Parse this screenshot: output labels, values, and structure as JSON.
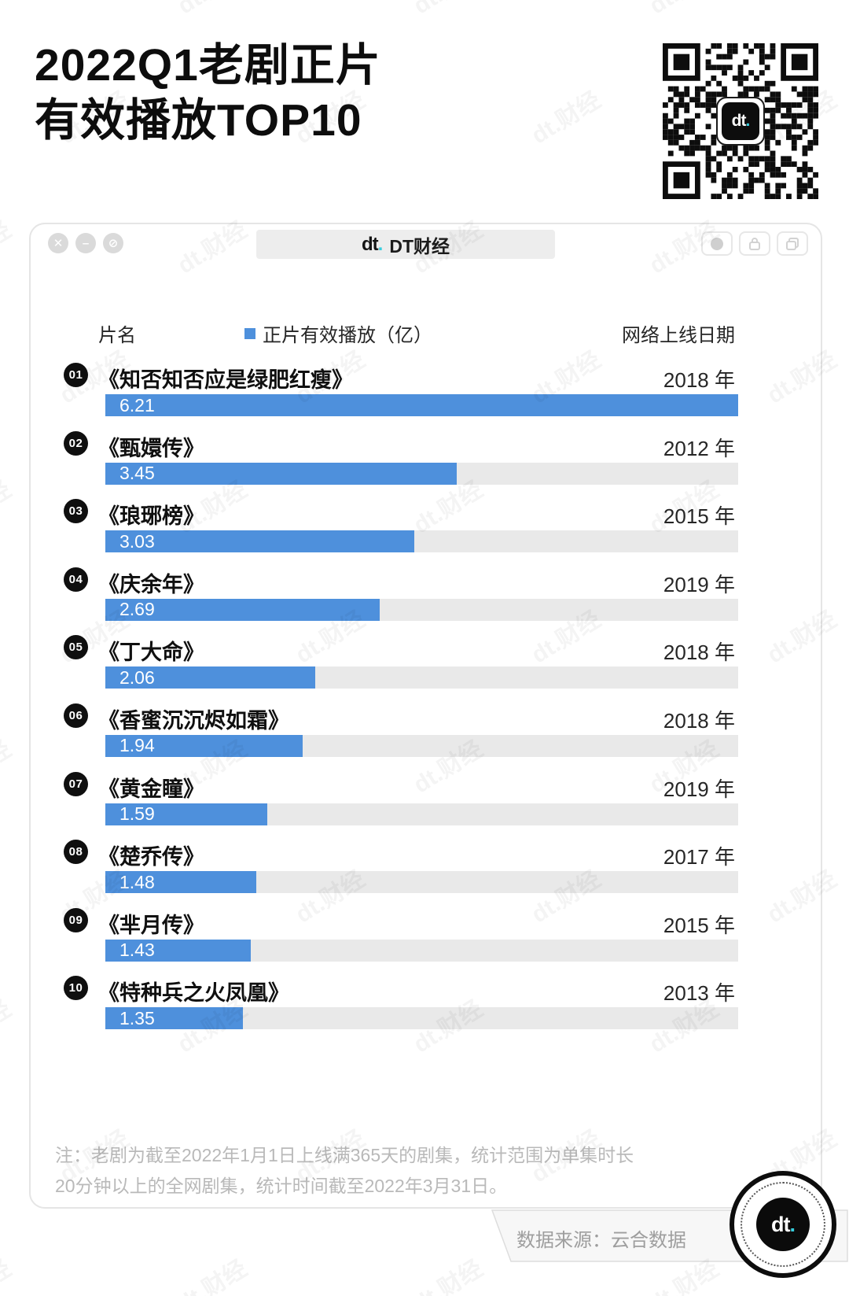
{
  "page_title": {
    "line1": "2022Q1老剧正片",
    "line2": "有效播放TOP10"
  },
  "watermark_text": "dt.财经",
  "qr": {
    "center_logo_text": "dt",
    "center_logo_dot": "."
  },
  "browser_bar": {
    "tab": {
      "logo_text": "dt",
      "logo_dot": ".",
      "title": "DT财经"
    },
    "window_controls": {
      "close": "✕",
      "minimize": "–",
      "block": "⊘"
    }
  },
  "table": {
    "headers": {
      "name": "片名",
      "legend": "正片有效播放（亿）",
      "date": "网络上线日期"
    },
    "rows": [
      {
        "rank": "01",
        "title": "《知否知否应是绿肥红瘦》",
        "year": "2018 年",
        "value": "6.21"
      },
      {
        "rank": "02",
        "title": "《甄嬛传》",
        "year": "2012 年",
        "value": "3.45"
      },
      {
        "rank": "03",
        "title": "《琅琊榜》",
        "year": "2015 年",
        "value": "3.03"
      },
      {
        "rank": "04",
        "title": "《庆余年》",
        "year": "2019 年",
        "value": "2.69"
      },
      {
        "rank": "05",
        "title": "《丁大命》",
        "year": "2018 年",
        "value": "2.06"
      },
      {
        "rank": "06",
        "title": "《香蜜沉沉烬如霜》",
        "year": "2018 年",
        "value": "1.94"
      },
      {
        "rank": "07",
        "title": "《黄金瞳》",
        "year": "2019 年",
        "value": "1.59"
      },
      {
        "rank": "08",
        "title": "《楚乔传》",
        "year": "2017 年",
        "value": "1.48"
      },
      {
        "rank": "09",
        "title": "《芈月传》",
        "year": "2015 年",
        "value": "1.43"
      },
      {
        "rank": "10",
        "title": "《特种兵之火凤凰》",
        "year": "2013 年",
        "value": "1.35"
      }
    ]
  },
  "chart_data": {
    "type": "bar",
    "orientation": "horizontal",
    "title": "2022Q1老剧正片有效播放TOP10",
    "categories": [
      "《知否知否应是绿肥红瘦》",
      "《甄嬛传》",
      "《琅琊榜》",
      "《庆余年》",
      "《丁大命》",
      "《香蜜沉沉烬如霜》",
      "《黄金瞳》",
      "《楚乔传》",
      "《芈月传》",
      "《特种兵之火凤凰》"
    ],
    "values": [
      6.21,
      3.45,
      3.03,
      2.69,
      2.06,
      1.94,
      1.59,
      1.48,
      1.43,
      1.35
    ],
    "series_label": "正片有效播放（亿）",
    "years": [
      "2018 年",
      "2012 年",
      "2015 年",
      "2019 年",
      "2018 年",
      "2018 年",
      "2019 年",
      "2017 年",
      "2015 年",
      "2013 年"
    ],
    "xlim": [
      0,
      6.21
    ],
    "bar_color": "#4E90DC",
    "track_color": "#e9e9e9",
    "legend_position": "top",
    "grid": false,
    "source": "云合数据"
  },
  "note": {
    "line1": "注：老剧为截至2022年1月1日上线满365天的剧集，统计范围为单集时长",
    "line2": "20分钟以上的全网剧集，统计时间截至2022年3月31日。"
  },
  "footer": {
    "source_label": "数据来源：云合数据",
    "logo_text": "dt",
    "logo_dot": "."
  }
}
